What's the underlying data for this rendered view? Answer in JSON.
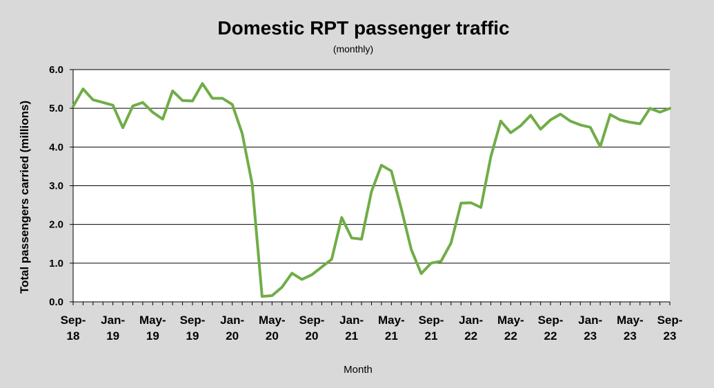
{
  "chart_data": {
    "type": "line",
    "title": "Domestic RPT passenger traffic",
    "subtitle": "(monthly)",
    "xlabel": "Month",
    "ylabel": "Total passengers carried (millions)",
    "ylim": [
      0,
      6
    ],
    "yticks": [
      "0.0",
      "1.0",
      "2.0",
      "3.0",
      "4.0",
      "5.0",
      "6.0"
    ],
    "grid": true,
    "line_color": "#70ad47",
    "x_tick_labels": [
      [
        "Sep-",
        "18"
      ],
      [
        "Jan-",
        "19"
      ],
      [
        "May-",
        "19"
      ],
      [
        "Sep-",
        "19"
      ],
      [
        "Jan-",
        "20"
      ],
      [
        "May-",
        "20"
      ],
      [
        "Sep-",
        "20"
      ],
      [
        "Jan-",
        "21"
      ],
      [
        "May-",
        "21"
      ],
      [
        "Sep-",
        "21"
      ],
      [
        "Jan-",
        "22"
      ],
      [
        "May-",
        "22"
      ],
      [
        "Sep-",
        "22"
      ],
      [
        "Jan-",
        "23"
      ],
      [
        "May-",
        "23"
      ],
      [
        "Sep-",
        "23"
      ]
    ],
    "x": [
      "Sep-18",
      "Oct-18",
      "Nov-18",
      "Dec-18",
      "Jan-19",
      "Feb-19",
      "Mar-19",
      "Apr-19",
      "May-19",
      "Jun-19",
      "Jul-19",
      "Aug-19",
      "Sep-19",
      "Oct-19",
      "Nov-19",
      "Dec-19",
      "Jan-20",
      "Feb-20",
      "Mar-20",
      "Apr-20",
      "May-20",
      "Jun-20",
      "Jul-20",
      "Aug-20",
      "Sep-20",
      "Oct-20",
      "Nov-20",
      "Dec-20",
      "Jan-21",
      "Feb-21",
      "Mar-21",
      "Apr-21",
      "May-21",
      "Jun-21",
      "Jul-21",
      "Aug-21",
      "Sep-21",
      "Oct-21",
      "Nov-21",
      "Dec-21",
      "Jan-22",
      "Feb-22",
      "Mar-22",
      "Apr-22",
      "May-22",
      "Jun-22",
      "Jul-22",
      "Aug-22",
      "Sep-22",
      "Oct-22",
      "Nov-22",
      "Dec-22",
      "Jan-23",
      "Feb-23",
      "Mar-23",
      "Apr-23",
      "May-23",
      "Jun-23",
      "Jul-23",
      "Aug-23",
      "Sep-23"
    ],
    "series": [
      {
        "values": [
          5.05,
          5.5,
          5.22,
          5.15,
          5.08,
          4.5,
          5.06,
          5.15,
          4.9,
          4.72,
          5.45,
          5.2,
          5.19,
          5.64,
          5.26,
          5.26,
          5.1,
          4.35,
          3.05,
          0.14,
          0.16,
          0.38,
          0.74,
          0.58,
          0.7,
          0.9,
          1.1,
          2.18,
          1.65,
          1.62,
          2.85,
          3.53,
          3.38,
          2.4,
          1.35,
          0.73,
          1.0,
          1.05,
          1.52,
          2.55,
          2.56,
          2.44,
          3.75,
          4.67,
          4.37,
          4.55,
          4.82,
          4.46,
          4.7,
          4.85,
          4.67,
          4.57,
          4.51,
          4.01,
          4.84,
          4.7,
          4.64,
          4.6,
          5.0,
          4.9,
          5.0
        ]
      }
    ]
  }
}
